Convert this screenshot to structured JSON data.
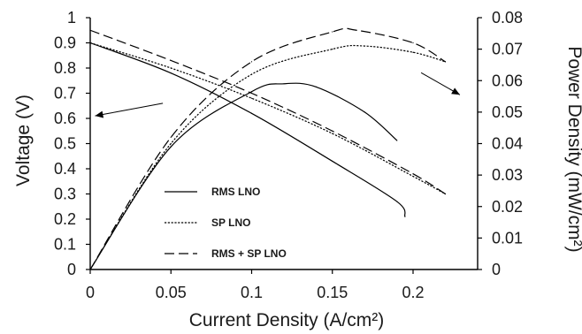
{
  "chart_data": {
    "type": "line",
    "title": "",
    "xlabel": "Current Density (A/cm²)",
    "ylabel_left": "Voltage (V)",
    "ylabel_right": "Power Density (mW/cm²)",
    "xlim": [
      0,
      0.24
    ],
    "ylim_left": [
      0,
      1
    ],
    "ylim_right": [
      0,
      0.08
    ],
    "x_ticks": [
      "0",
      "0.05",
      "0.1",
      "0.15",
      "0.2"
    ],
    "y_left_ticks": [
      "0",
      "0.1",
      "0.2",
      "0.3",
      "0.4",
      "0.5",
      "0.6",
      "0.7",
      "0.8",
      "0.9",
      "1"
    ],
    "y_right_ticks": [
      "0",
      "0.01",
      "0.02",
      "0.03",
      "0.04",
      "0.05",
      "0.06",
      "0.07",
      "0.08"
    ],
    "grid": false,
    "legend_position": "bottom-left-inside",
    "legend": [
      {
        "label": "RMS LNO",
        "style": "solid"
      },
      {
        "label": "SP LNO",
        "style": "dotted"
      },
      {
        "label": "RMS + SP LNO",
        "style": "dashed"
      }
    ],
    "series": [
      {
        "legend_index": 0,
        "axis": "left",
        "kind": "voltage",
        "x": [
          0,
          0.05,
          0.1,
          0.15,
          0.19,
          0.195
        ],
        "y": [
          0.9,
          0.78,
          0.62,
          0.43,
          0.27,
          0.21
        ]
      },
      {
        "legend_index": 0,
        "axis": "right",
        "kind": "power",
        "x": [
          0,
          0.05,
          0.1,
          0.12,
          0.14,
          0.17,
          0.19
        ],
        "y": [
          0,
          0.039,
          0.0565,
          0.059,
          0.058,
          0.05,
          0.041
        ]
      },
      {
        "legend_index": 1,
        "axis": "left",
        "kind": "voltage",
        "x": [
          0,
          0.05,
          0.1,
          0.15,
          0.2,
          0.22
        ],
        "y": [
          0.9,
          0.8,
          0.68,
          0.54,
          0.37,
          0.3
        ]
      },
      {
        "legend_index": 1,
        "axis": "right",
        "kind": "power",
        "x": [
          0,
          0.05,
          0.1,
          0.15,
          0.17,
          0.2,
          0.22
        ],
        "y": [
          0,
          0.04,
          0.062,
          0.07,
          0.071,
          0.069,
          0.066
        ]
      },
      {
        "legend_index": 2,
        "axis": "left",
        "kind": "voltage",
        "x": [
          0,
          0.05,
          0.1,
          0.15,
          0.2,
          0.22
        ],
        "y": [
          0.95,
          0.83,
          0.7,
          0.55,
          0.38,
          0.3
        ]
      },
      {
        "legend_index": 2,
        "axis": "right",
        "kind": "power",
        "x": [
          0,
          0.05,
          0.1,
          0.15,
          0.165,
          0.2,
          0.22
        ],
        "y": [
          0,
          0.042,
          0.066,
          0.0755,
          0.076,
          0.072,
          0.066
        ]
      }
    ],
    "annotations": [
      {
        "kind": "arrow",
        "meaning": "voltage curves read on left axis",
        "from": [
          0.045,
          0.66
        ],
        "to": [
          0.003,
          0.61
        ],
        "axis": "left"
      },
      {
        "kind": "arrow",
        "meaning": "power curves read on right axis",
        "from": [
          0.205,
          0.0625
        ],
        "to": [
          0.229,
          0.0555
        ],
        "axis": "right"
      }
    ]
  }
}
